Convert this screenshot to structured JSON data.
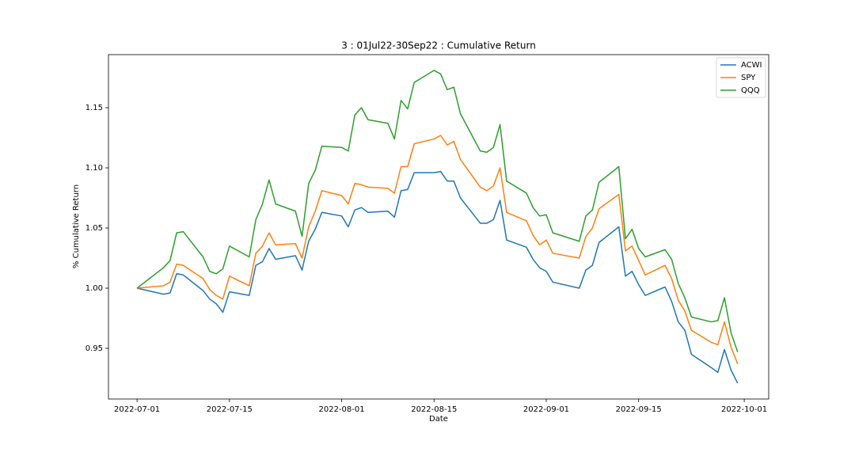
{
  "chart_data": {
    "type": "line",
    "title": "3 : 01Jul22-30Sep22 : Cumulative Return",
    "x_label": "Date",
    "y_label": "% Cumulative Return",
    "x": [
      "2022-07-01",
      "2022-07-05",
      "2022-07-06",
      "2022-07-07",
      "2022-07-08",
      "2022-07-11",
      "2022-07-12",
      "2022-07-13",
      "2022-07-14",
      "2022-07-15",
      "2022-07-18",
      "2022-07-19",
      "2022-07-20",
      "2022-07-21",
      "2022-07-22",
      "2022-07-25",
      "2022-07-26",
      "2022-07-27",
      "2022-07-28",
      "2022-07-29",
      "2022-08-01",
      "2022-08-02",
      "2022-08-03",
      "2022-08-04",
      "2022-08-05",
      "2022-08-08",
      "2022-08-09",
      "2022-08-10",
      "2022-08-11",
      "2022-08-12",
      "2022-08-15",
      "2022-08-16",
      "2022-08-17",
      "2022-08-18",
      "2022-08-19",
      "2022-08-22",
      "2022-08-23",
      "2022-08-24",
      "2022-08-25",
      "2022-08-26",
      "2022-08-29",
      "2022-08-30",
      "2022-08-31",
      "2022-09-01",
      "2022-09-02",
      "2022-09-06",
      "2022-09-07",
      "2022-09-08",
      "2022-09-09",
      "2022-09-12",
      "2022-09-13",
      "2022-09-14",
      "2022-09-15",
      "2022-09-16",
      "2022-09-19",
      "2022-09-20",
      "2022-09-21",
      "2022-09-22",
      "2022-09-23",
      "2022-09-26",
      "2022-09-27",
      "2022-09-28",
      "2022-09-29",
      "2022-09-30"
    ],
    "series": [
      {
        "name": "ACWI",
        "color": "#1f77b4",
        "values": [
          1.0,
          0.995,
          0.996,
          1.012,
          1.011,
          0.998,
          0.991,
          0.987,
          0.98,
          0.997,
          0.994,
          1.019,
          1.022,
          1.033,
          1.024,
          1.027,
          1.015,
          1.039,
          1.049,
          1.063,
          1.06,
          1.051,
          1.065,
          1.067,
          1.063,
          1.064,
          1.059,
          1.081,
          1.082,
          1.096,
          1.096,
          1.097,
          1.089,
          1.089,
          1.075,
          1.054,
          1.054,
          1.057,
          1.073,
          1.04,
          1.034,
          1.024,
          1.017,
          1.014,
          1.005,
          1.0,
          1.015,
          1.019,
          1.038,
          1.051,
          1.01,
          1.014,
          1.003,
          0.994,
          1.001,
          0.989,
          0.972,
          0.965,
          0.945,
          0.934,
          0.93,
          0.949,
          0.932,
          0.921
        ]
      },
      {
        "name": "SPY",
        "color": "#ff7f0e",
        "values": [
          1.0,
          1.002,
          1.005,
          1.02,
          1.019,
          1.008,
          0.999,
          0.994,
          0.991,
          1.01,
          1.002,
          1.029,
          1.035,
          1.046,
          1.036,
          1.037,
          1.025,
          1.051,
          1.064,
          1.081,
          1.077,
          1.07,
          1.087,
          1.086,
          1.084,
          1.083,
          1.079,
          1.101,
          1.101,
          1.12,
          1.124,
          1.127,
          1.119,
          1.122,
          1.107,
          1.084,
          1.081,
          1.085,
          1.1,
          1.063,
          1.056,
          1.044,
          1.036,
          1.04,
          1.029,
          1.025,
          1.043,
          1.05,
          1.066,
          1.078,
          1.031,
          1.035,
          1.023,
          1.011,
          1.019,
          1.008,
          0.99,
          0.981,
          0.965,
          0.955,
          0.953,
          0.972,
          0.951,
          0.937
        ]
      },
      {
        "name": "QQQ",
        "color": "#2ca02c",
        "values": [
          1.0,
          1.017,
          1.023,
          1.046,
          1.047,
          1.026,
          1.014,
          1.012,
          1.016,
          1.035,
          1.026,
          1.057,
          1.07,
          1.09,
          1.07,
          1.064,
          1.043,
          1.087,
          1.098,
          1.118,
          1.117,
          1.114,
          1.144,
          1.15,
          1.14,
          1.137,
          1.124,
          1.156,
          1.149,
          1.171,
          1.181,
          1.178,
          1.165,
          1.167,
          1.145,
          1.114,
          1.113,
          1.117,
          1.136,
          1.089,
          1.079,
          1.067,
          1.06,
          1.061,
          1.046,
          1.039,
          1.06,
          1.065,
          1.088,
          1.101,
          1.041,
          1.049,
          1.033,
          1.026,
          1.032,
          1.024,
          1.004,
          0.992,
          0.976,
          0.972,
          0.973,
          0.992,
          0.963,
          0.947
        ]
      }
    ],
    "xlim": [
      "2022-06-26T16:00",
      "2022-10-04T17:00"
    ],
    "xticks": [
      "2022-07-01",
      "2022-07-15",
      "2022-08-01",
      "2022-08-15",
      "2022-09-01",
      "2022-09-15",
      "2022-10-01"
    ],
    "ylim": [
      0.9079,
      1.1941
    ],
    "yticks": [
      0.95,
      {
        "value": 1.0,
        "label": "1.00"
      },
      1.05,
      {
        "value": 1.1,
        "label": "1.10"
      },
      1.15
    ],
    "legend": "upper right",
    "grid": false
  }
}
